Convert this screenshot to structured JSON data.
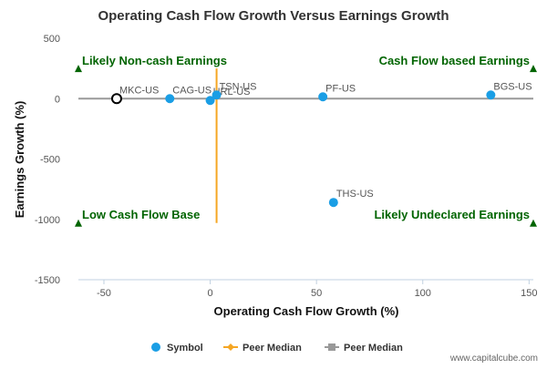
{
  "chart_data": {
    "type": "scatter",
    "title": "Operating Cash Flow Growth Versus Earnings Growth",
    "xlabel": "Operating Cash Flow Growth (%)",
    "ylabel": "Earnings Growth (%)",
    "xlim": [
      -62,
      152
    ],
    "ylim": [
      -1500,
      500
    ],
    "x_ticks": [
      -50,
      0,
      50,
      100,
      150
    ],
    "y_ticks": [
      500,
      0,
      -500,
      -1000,
      -1500
    ],
    "grid": false,
    "points": [
      {
        "label": "MKC-US",
        "x": -44,
        "y": 0,
        "highlight": true
      },
      {
        "label": "CAG-US",
        "x": -19,
        "y": 0,
        "highlight": false
      },
      {
        "label": "HRL-US",
        "x": 0,
        "y": -15,
        "highlight": false
      },
      {
        "label": "TSN-US",
        "x": 3,
        "y": 30,
        "highlight": false
      },
      {
        "label": "PF-US",
        "x": 53,
        "y": 15,
        "highlight": false
      },
      {
        "label": "BGS-US",
        "x": 132,
        "y": 30,
        "highlight": false
      },
      {
        "label": "THS-US",
        "x": 58,
        "y": -860,
        "highlight": false
      }
    ],
    "peer_median": {
      "x": 3,
      "y": 0
    },
    "vertical_line": {
      "x": 3,
      "y_from": 250,
      "y_to": -1030,
      "color": "#f5a623"
    },
    "horizontal_line": {
      "y": 0,
      "color": "#999999"
    },
    "quadrant_labels": {
      "top_left": "Likely Non-cash Earnings",
      "top_right": "Cash Flow based Earnings",
      "bottom_left": "Low Cash Flow Base",
      "bottom_right": "Likely Undeclared Earnings"
    },
    "markers": [
      {
        "x": -62,
        "y": 250
      },
      {
        "x": 152,
        "y": 250
      },
      {
        "x": -62,
        "y": -1030
      },
      {
        "x": 152,
        "y": -1030
      }
    ],
    "legend": {
      "placement": "bottom",
      "items": [
        {
          "label": "Symbol",
          "symbol": "circle",
          "color": "#1a9ee5"
        },
        {
          "label": "Peer Median",
          "symbol": "diamond-line",
          "color": "#f5a623"
        },
        {
          "label": "Peer Median",
          "symbol": "square-line",
          "color": "#999999"
        }
      ]
    },
    "colors": {
      "point": "#1a9ee5",
      "quadrant_text": "#006400",
      "marker": "#006400",
      "highlight_ring": "#000000"
    }
  },
  "credit": "www.capitalcube.com"
}
